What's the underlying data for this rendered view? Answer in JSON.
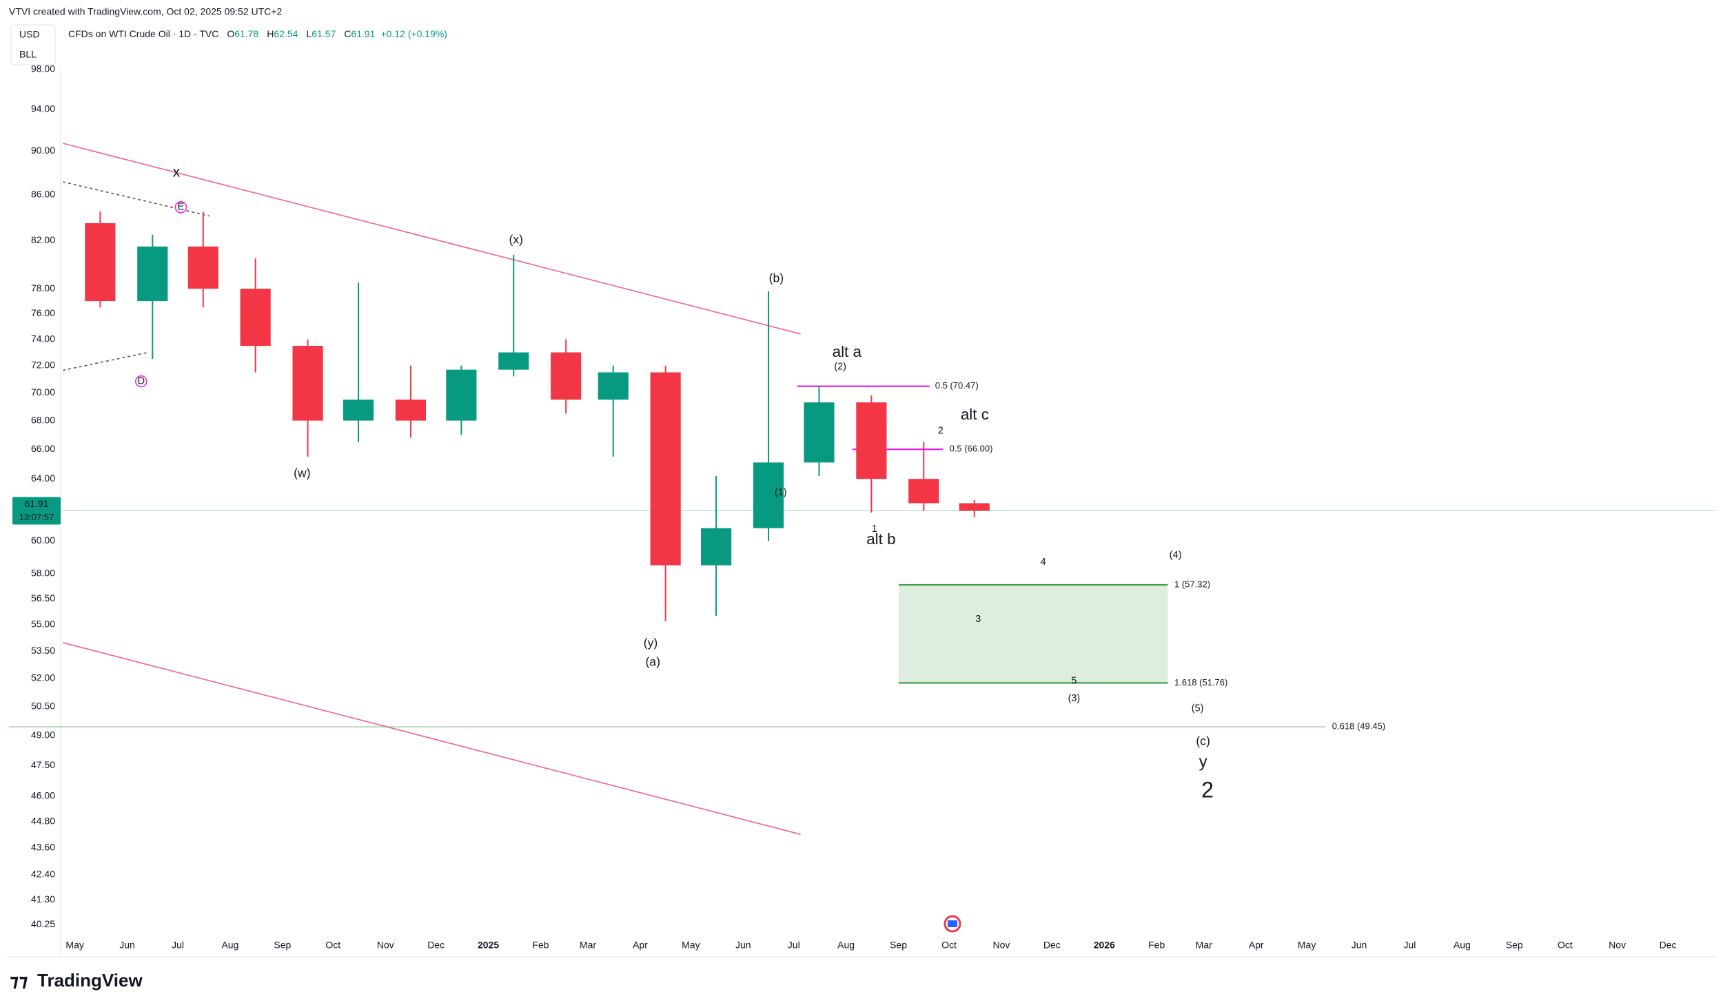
{
  "header": {
    "caption": "VTVI created with TradingView.com, Oct 02, 2025 09:52 UTC+2",
    "currency": "USD",
    "unit": "BLL",
    "symbol": "CFDs on WTI Crude Oil · 1D · TVC",
    "ohlc": [
      {
        "label": "O",
        "value": 61.78
      },
      {
        "label": "H",
        "value": 62.54
      },
      {
        "label": "L",
        "value": 61.57
      },
      {
        "label": "C",
        "value": 61.91
      }
    ],
    "change": "+0.12 (+0.19%)"
  },
  "chart_data": {
    "type": "candlestick",
    "x": [
      "2024-05",
      "2024-06",
      "2024-07",
      "2024-08",
      "2024-09",
      "2024-10",
      "2024-11",
      "2024-12",
      "2025-01",
      "2025-02",
      "2025-03",
      "2025-04",
      "2025-05",
      "2025-06",
      "2025-07",
      "2025-08",
      "2025-09",
      "2025-10"
    ],
    "open": [
      83.5,
      77.0,
      81.5,
      78.0,
      73.5,
      68.0,
      69.5,
      68.0,
      71.7,
      73.0,
      69.5,
      71.5,
      58.5,
      60.8,
      65.1,
      69.3,
      64.0,
      62.4
    ],
    "high": [
      84.5,
      82.5,
      84.5,
      80.5,
      74.0,
      78.5,
      72.0,
      72.0,
      80.8,
      74.0,
      72.0,
      72.0,
      64.2,
      77.8,
      70.5,
      69.8,
      66.5,
      62.6
    ],
    "low": [
      76.5,
      72.5,
      76.5,
      71.5,
      65.5,
      66.5,
      66.8,
      67.0,
      71.2,
      68.5,
      65.5,
      55.2,
      55.5,
      60.0,
      64.2,
      61.8,
      61.9,
      61.5
    ],
    "close": [
      77.0,
      81.5,
      78.0,
      73.5,
      68.0,
      69.5,
      68.0,
      71.7,
      73.0,
      69.5,
      71.5,
      58.5,
      60.8,
      65.1,
      69.3,
      64.0,
      62.4,
      61.91
    ],
    "up_color": "#089981",
    "down_color": "#f23645",
    "xlim": [
      "2024-04",
      "2027-01"
    ],
    "x_tick_labels": [
      "May",
      "Jun",
      "Jul",
      "Aug",
      "Sep",
      "Oct",
      "Nov",
      "Dec",
      "2025",
      "Feb",
      "Mar",
      "Apr",
      "May",
      "Jun",
      "Jul",
      "Aug",
      "Sep",
      "Oct",
      "Nov",
      "Dec",
      "2026",
      "Feb",
      "Mar",
      "Apr",
      "May",
      "Jun",
      "Jul",
      "Aug",
      "Sep",
      "Oct",
      "Nov",
      "Dec"
    ],
    "x_tick_start": "2024-05",
    "ylim": [
      39,
      99
    ],
    "log_scale": true,
    "grid": false,
    "yticks": [
      {
        "value": 98,
        "label": "98.00"
      },
      {
        "value": 94,
        "label": "94.00"
      },
      {
        "value": 90,
        "label": "90.00"
      },
      {
        "value": 86,
        "label": "86.00"
      },
      {
        "value": 82,
        "label": "82.00"
      },
      {
        "value": 78,
        "label": "78.00"
      },
      {
        "value": 76,
        "label": "76.00"
      },
      {
        "value": 74,
        "label": "74.00"
      },
      {
        "value": 72,
        "label": "72.00"
      },
      {
        "value": 70,
        "label": "70.00"
      },
      {
        "value": 68,
        "label": "68.00"
      },
      {
        "value": 66,
        "label": "66.00"
      },
      {
        "value": 64,
        "label": "64.00"
      },
      {
        "value": 60,
        "label": "60.00"
      },
      {
        "value": 58,
        "label": "58.00"
      },
      {
        "value": 56.5,
        "label": "56.50"
      },
      {
        "value": 55,
        "label": "55.00"
      },
      {
        "value": 53.5,
        "label": "53.50"
      },
      {
        "value": 52,
        "label": "52.00"
      },
      {
        "value": 50.5,
        "label": "50.50"
      },
      {
        "value": 49,
        "label": "49.00"
      },
      {
        "value": 47.5,
        "label": "47.50"
      },
      {
        "value": 46,
        "label": "46.00"
      },
      {
        "value": 44.8,
        "label": "44.80"
      },
      {
        "value": 43.6,
        "label": "43.60"
      },
      {
        "value": 42.4,
        "label": "42.40"
      },
      {
        "value": 41.3,
        "label": "41.30"
      },
      40.25
    ],
    "last_price": 61.91,
    "countdown": "13:07:57",
    "price_color": "#089981",
    "fib_levels": [
      {
        "value": 70.47,
        "label": "0.5 (70.47)",
        "color": "#e91ee3"
      },
      {
        "value": 66.0,
        "label": "0.5 (66.00)",
        "color": "#e91ee3"
      },
      {
        "value": 57.32,
        "label": "1 (57.32)",
        "color": "#43a047"
      },
      {
        "value": 51.76,
        "label": "1.618 (51.76)",
        "color": "#43a047"
      },
      {
        "value": 49.45,
        "label": "0.618 (49.45)",
        "color": "#43a047"
      }
    ],
    "annotations": [
      {
        "text": "x",
        "color": "#000000"
      },
      {
        "text": "E",
        "color": "#e91ee3",
        "circled": true
      },
      {
        "text": "D",
        "color": "#e91ee3",
        "circled": true
      },
      {
        "text": "(w)",
        "color": "#f7931a"
      },
      {
        "text": "(x)",
        "color": "#f7931a"
      },
      {
        "text": "(y)",
        "color": "#f7931a"
      },
      {
        "text": "(a)",
        "color": "#2962ff"
      },
      {
        "text": "(b)",
        "color": "#2962ff"
      },
      {
        "text": "alt a",
        "color": "#2962ff"
      },
      {
        "text": "(2)",
        "color": "#000000"
      },
      {
        "text": "(1)",
        "color": "#000000"
      },
      {
        "text": "1",
        "color": "#000000"
      },
      {
        "text": "alt b",
        "color": "#2962ff"
      },
      {
        "text": "2",
        "color": "#000000"
      },
      {
        "text": "alt c",
        "color": "#2962ff"
      },
      {
        "text": "4",
        "color": "#000000"
      },
      {
        "text": "(4)",
        "color": "#000000"
      },
      {
        "text": "3",
        "color": "#000000"
      },
      {
        "text": "5",
        "color": "#000000"
      },
      {
        "text": "(3)",
        "color": "#000000"
      },
      {
        "text": "(5)",
        "color": "#000000"
      },
      {
        "text": "(c)",
        "color": "#2962ff"
      },
      {
        "text": "y",
        "color": "#000000"
      },
      {
        "text": "2",
        "color": "#43a047"
      }
    ]
  },
  "footer": {
    "brand": "TradingView"
  }
}
